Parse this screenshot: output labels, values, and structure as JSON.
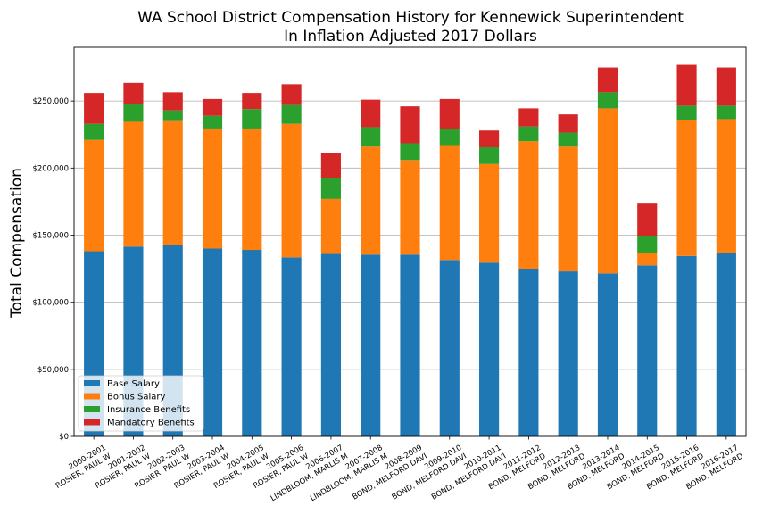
{
  "chart_data": {
    "type": "bar",
    "stacked": true,
    "title": "WA School District Compensation History for Kennewick Superintendent",
    "subtitle": "In Inflation Adjusted 2017 Dollars",
    "ylabel": "Total Compensation",
    "xlabel": "",
    "ylim": [
      0,
      290000
    ],
    "yticks": [
      0,
      50000,
      100000,
      150000,
      200000,
      250000
    ],
    "ytick_labels": [
      "$0",
      "$50,000",
      "$100,000",
      "$150,000",
      "$200,000",
      "$250,000"
    ],
    "grid": "horizontal",
    "legend_position": "lower-left",
    "categories": [
      [
        "2000-2001",
        "ROSIER, PAUL W"
      ],
      [
        "2001-2002",
        "ROSIER, PAUL W"
      ],
      [
        "2002-2003",
        "ROSIER, PAUL W"
      ],
      [
        "2003-2004",
        "ROSIER, PAUL W"
      ],
      [
        "2004-2005",
        "ROSIER, PAUL W"
      ],
      [
        "2005-2006",
        "ROSIER, PAUL W"
      ],
      [
        "2006-2007",
        "LINDBLOOM, MARLIS M"
      ],
      [
        "2007-2008",
        "LINDBLOOM, MARLIS M"
      ],
      [
        "2008-2009",
        "BOND, MELFORD DAVI"
      ],
      [
        "2009-2010",
        "BOND, MELFORD DAVI"
      ],
      [
        "2010-2011",
        "BOND, MELFORD DAVI"
      ],
      [
        "2011-2012",
        "BOND, MELFORD"
      ],
      [
        "2012-2013",
        "BOND, MELFORD"
      ],
      [
        "2013-2014",
        "BOND, MELFORD"
      ],
      [
        "2014-2015",
        "BOND, MELFORD"
      ],
      [
        "2015-2016",
        "BOND, MELFORD"
      ],
      [
        "2016-2017",
        "BOND, MELFORD"
      ]
    ],
    "series": [
      {
        "name": "Base Salary",
        "color": "#1f77b4",
        "values": [
          138000,
          141500,
          143000,
          140000,
          139000,
          133500,
          136000,
          135500,
          135500,
          131500,
          129500,
          125000,
          123000,
          121500,
          127500,
          134500,
          136500
        ]
      },
      {
        "name": "Bonus Salary",
        "color": "#ff7f0e",
        "values": [
          83000,
          93000,
          92000,
          89500,
          90500,
          99500,
          41000,
          80500,
          70500,
          85000,
          73500,
          95000,
          93000,
          123000,
          9000,
          101000,
          100000
        ]
      },
      {
        "name": "Insurance Benefits",
        "color": "#2ca02c",
        "values": [
          12000,
          13500,
          8000,
          9500,
          14500,
          14000,
          15500,
          14500,
          12500,
          12500,
          12500,
          11000,
          10500,
          12000,
          12500,
          11000,
          10000
        ]
      },
      {
        "name": "Mandatory Benefits",
        "color": "#d62728",
        "values": [
          23000,
          15500,
          13500,
          12500,
          12000,
          15500,
          18500,
          20500,
          27500,
          22500,
          12500,
          13500,
          13500,
          18500,
          24500,
          30500,
          28500
        ]
      }
    ]
  }
}
